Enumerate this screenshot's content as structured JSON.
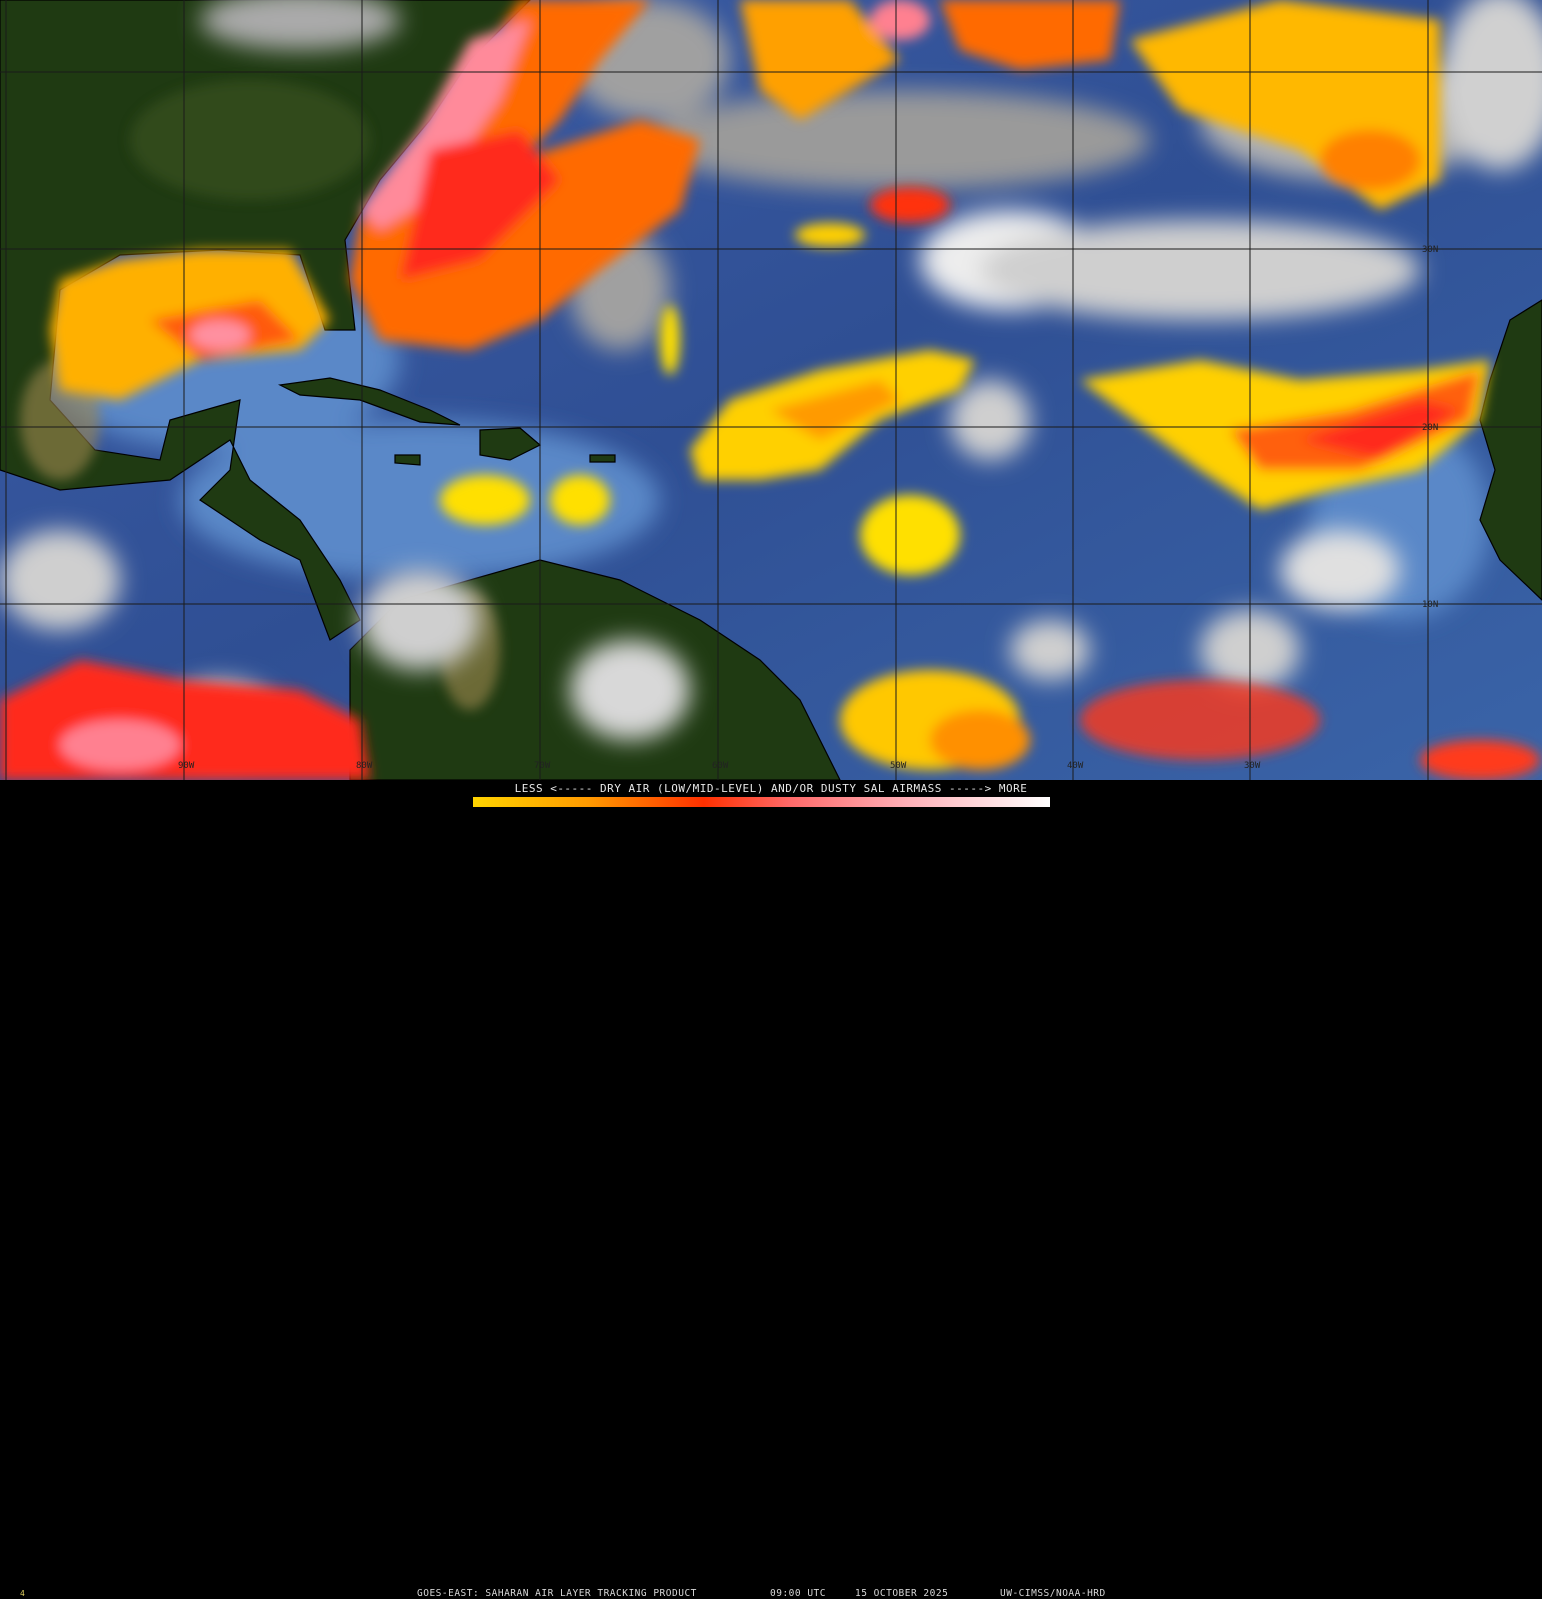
{
  "map": {
    "product": "GOES-East Saharan Air Layer Tracking Product",
    "longitude_labels": [
      "90W",
      "80W",
      "70W",
      "60W",
      "50W",
      "40W",
      "30W"
    ],
    "latitude_labels": [
      "30N",
      "20N",
      "10N"
    ],
    "colors": {
      "ocean": "#3a5a9a",
      "land": "#1f3a12",
      "cloud": "#c8c8c8",
      "dust_low": "#ffe000",
      "dust_mid": "#ff8c00",
      "dust_high": "#ff2a1a",
      "dust_max": "#ffb0c0"
    }
  },
  "legend": {
    "title": "LESS <----- DRY AIR (LOW/MID-LEVEL) AND/OR DUSTY SAL AIRMASS -----> MORE",
    "colorbar": {
      "min_label": "LESS",
      "max_label": "MORE",
      "colors": [
        "#ffd400",
        "#ff9a00",
        "#ff3000",
        "#ff6a6a",
        "#ffb0b8",
        "#ffffff"
      ]
    },
    "footer_product": "GOES-EAST: SAHARAN AIR LAYER TRACKING PRODUCT",
    "footer_time": "09:00 UTC",
    "footer_date": "15 OCTOBER 2025",
    "footer_credit": "UW-CIMSS/NOAA-HRD",
    "frame_number": "4"
  }
}
